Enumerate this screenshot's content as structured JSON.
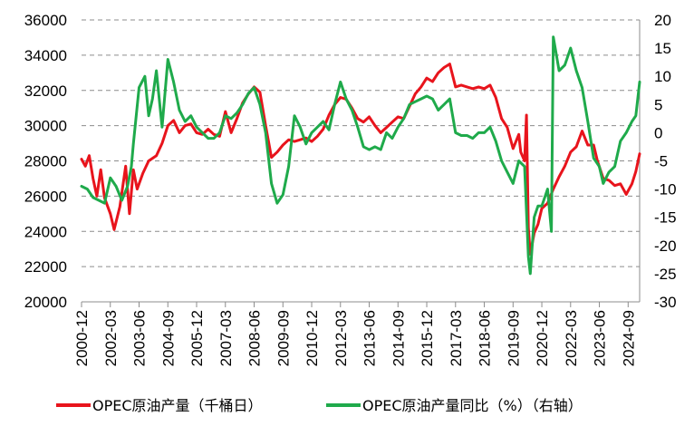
{
  "chart_data": {
    "type": "line",
    "title": "",
    "left_axis": {
      "ylim": [
        20000,
        36000
      ],
      "ticks": [
        20000,
        22000,
        24000,
        26000,
        28000,
        30000,
        32000,
        34000,
        36000
      ]
    },
    "right_axis": {
      "ylim": [
        -30,
        20
      ],
      "ticks": [
        -30,
        -25,
        -20,
        -15,
        -10,
        -5,
        0,
        5,
        10,
        15,
        20
      ]
    },
    "x_tick_labels": [
      "2000-12",
      "2002-03",
      "2003-06",
      "2004-09",
      "2005-12",
      "2007-03",
      "2008-06",
      "2009-09",
      "2010-12",
      "2012-03",
      "2013-06",
      "2014-09",
      "2015-12",
      "2017-03",
      "2018-06",
      "2019-09",
      "2020-12",
      "2022-03",
      "2023-06",
      "2024-09"
    ],
    "x_start": "2000-12",
    "x_end": "2025-03",
    "grid": true,
    "legend_position": "bottom",
    "series": [
      {
        "name": "OPEC原油产量（千桶日）",
        "axis": "left",
        "color": "#e8141c",
        "points": [
          [
            "2000-12",
            28100
          ],
          [
            "2001-02",
            27700
          ],
          [
            "2001-04",
            28300
          ],
          [
            "2001-06",
            27000
          ],
          [
            "2001-08",
            26000
          ],
          [
            "2001-10",
            27500
          ],
          [
            "2001-12",
            25900
          ],
          [
            "2002-03",
            25000
          ],
          [
            "2002-05",
            24100
          ],
          [
            "2002-08",
            25400
          ],
          [
            "2002-11",
            27700
          ],
          [
            "2003-01",
            25000
          ],
          [
            "2003-03",
            27500
          ],
          [
            "2003-05",
            26400
          ],
          [
            "2003-08",
            27300
          ],
          [
            "2003-11",
            28000
          ],
          [
            "2004-03",
            28300
          ],
          [
            "2004-06",
            29000
          ],
          [
            "2004-09",
            30000
          ],
          [
            "2004-12",
            30300
          ],
          [
            "2005-03",
            29600
          ],
          [
            "2005-06",
            30000
          ],
          [
            "2005-09",
            30100
          ],
          [
            "2005-12",
            29600
          ],
          [
            "2006-03",
            29500
          ],
          [
            "2006-06",
            29800
          ],
          [
            "2006-09",
            29500
          ],
          [
            "2006-12",
            29400
          ],
          [
            "2007-03",
            30800
          ],
          [
            "2007-06",
            29600
          ],
          [
            "2007-09",
            30400
          ],
          [
            "2007-12",
            31300
          ],
          [
            "2008-03",
            31800
          ],
          [
            "2008-06",
            32200
          ],
          [
            "2008-09",
            31900
          ],
          [
            "2008-12",
            30000
          ],
          [
            "2009-03",
            28200
          ],
          [
            "2009-06",
            28500
          ],
          [
            "2009-09",
            28900
          ],
          [
            "2009-12",
            29200
          ],
          [
            "2010-03",
            29100
          ],
          [
            "2010-06",
            29200
          ],
          [
            "2010-09",
            29300
          ],
          [
            "2010-12",
            29100
          ],
          [
            "2011-03",
            29400
          ],
          [
            "2011-06",
            29800
          ],
          [
            "2011-09",
            30600
          ],
          [
            "2011-12",
            31200
          ],
          [
            "2012-03",
            31600
          ],
          [
            "2012-06",
            31500
          ],
          [
            "2012-09",
            31000
          ],
          [
            "2012-12",
            30400
          ],
          [
            "2013-03",
            30200
          ],
          [
            "2013-06",
            30500
          ],
          [
            "2013-09",
            30000
          ],
          [
            "2013-12",
            29600
          ],
          [
            "2014-03",
            29900
          ],
          [
            "2014-06",
            30200
          ],
          [
            "2014-09",
            30500
          ],
          [
            "2014-12",
            30400
          ],
          [
            "2015-03",
            31100
          ],
          [
            "2015-06",
            31800
          ],
          [
            "2015-09",
            32200
          ],
          [
            "2015-12",
            32700
          ],
          [
            "2016-03",
            32500
          ],
          [
            "2016-06",
            33000
          ],
          [
            "2016-09",
            33300
          ],
          [
            "2016-12",
            33500
          ],
          [
            "2017-03",
            32200
          ],
          [
            "2017-06",
            32300
          ],
          [
            "2017-09",
            32200
          ],
          [
            "2017-12",
            32100
          ],
          [
            "2018-03",
            32200
          ],
          [
            "2018-06",
            32100
          ],
          [
            "2018-09",
            32300
          ],
          [
            "2018-12",
            31600
          ],
          [
            "2019-03",
            30400
          ],
          [
            "2019-06",
            29900
          ],
          [
            "2019-09",
            28700
          ],
          [
            "2019-12",
            29500
          ],
          [
            "2020-01",
            28500
          ],
          [
            "2020-03",
            28000
          ],
          [
            "2020-04",
            30600
          ],
          [
            "2020-05",
            24200
          ],
          [
            "2020-06",
            22700
          ],
          [
            "2020-08",
            23900
          ],
          [
            "2020-10",
            24400
          ],
          [
            "2020-12",
            25300
          ],
          [
            "2021-03",
            25600
          ],
          [
            "2021-06",
            26400
          ],
          [
            "2021-09",
            27100
          ],
          [
            "2021-12",
            27700
          ],
          [
            "2022-03",
            28500
          ],
          [
            "2022-06",
            28800
          ],
          [
            "2022-09",
            29700
          ],
          [
            "2022-12",
            28900
          ],
          [
            "2023-03",
            28900
          ],
          [
            "2023-05",
            28000
          ],
          [
            "2023-08",
            27000
          ],
          [
            "2023-11",
            26900
          ],
          [
            "2024-02",
            26600
          ],
          [
            "2024-05",
            26700
          ],
          [
            "2024-08",
            26100
          ],
          [
            "2024-11",
            26700
          ],
          [
            "2025-01",
            27400
          ],
          [
            "2025-03",
            28400
          ]
        ]
      },
      {
        "name": "OPEC原油产量同比（%）（右轴）",
        "axis": "right",
        "color": "#1faa4b",
        "points": [
          [
            "2000-12",
            -9.5
          ],
          [
            "2001-03",
            -10
          ],
          [
            "2001-06",
            -11.5
          ],
          [
            "2001-09",
            -12
          ],
          [
            "2001-12",
            -12.5
          ],
          [
            "2002-03",
            -8
          ],
          [
            "2002-06",
            -9.5
          ],
          [
            "2002-09",
            -12
          ],
          [
            "2002-12",
            -9.5
          ],
          [
            "2003-02",
            -6
          ],
          [
            "2003-03",
            -2
          ],
          [
            "2003-06",
            8
          ],
          [
            "2003-09",
            10
          ],
          [
            "2003-11",
            3
          ],
          [
            "2004-01",
            6
          ],
          [
            "2004-03",
            11
          ],
          [
            "2004-06",
            1
          ],
          [
            "2004-09",
            13
          ],
          [
            "2004-12",
            9
          ],
          [
            "2005-03",
            4
          ],
          [
            "2005-06",
            2
          ],
          [
            "2005-09",
            3
          ],
          [
            "2005-12",
            1
          ],
          [
            "2006-03",
            0
          ],
          [
            "2006-06",
            -1
          ],
          [
            "2006-09",
            -1
          ],
          [
            "2006-12",
            0
          ],
          [
            "2007-03",
            3
          ],
          [
            "2007-06",
            2.5
          ],
          [
            "2007-09",
            3.5
          ],
          [
            "2007-12",
            5
          ],
          [
            "2008-03",
            7
          ],
          [
            "2008-06",
            8
          ],
          [
            "2008-09",
            5
          ],
          [
            "2008-12",
            0
          ],
          [
            "2009-03",
            -9
          ],
          [
            "2009-06",
            -12.5
          ],
          [
            "2009-09",
            -11
          ],
          [
            "2009-12",
            -6
          ],
          [
            "2010-03",
            3
          ],
          [
            "2010-06",
            1
          ],
          [
            "2010-09",
            -2
          ],
          [
            "2010-12",
            0
          ],
          [
            "2011-03",
            1
          ],
          [
            "2011-06",
            2
          ],
          [
            "2011-09",
            0.5
          ],
          [
            "2011-12",
            5
          ],
          [
            "2012-03",
            9
          ],
          [
            "2012-06",
            6
          ],
          [
            "2012-09",
            4
          ],
          [
            "2012-12",
            1
          ],
          [
            "2013-03",
            -2.5
          ],
          [
            "2013-06",
            -3
          ],
          [
            "2013-09",
            -2.5
          ],
          [
            "2013-12",
            -3
          ],
          [
            "2014-03",
            0
          ],
          [
            "2014-06",
            -1
          ],
          [
            "2014-09",
            1
          ],
          [
            "2014-12",
            2.5
          ],
          [
            "2015-03",
            5
          ],
          [
            "2015-06",
            5.5
          ],
          [
            "2015-09",
            6
          ],
          [
            "2015-12",
            6.5
          ],
          [
            "2016-03",
            6
          ],
          [
            "2016-06",
            4
          ],
          [
            "2016-09",
            5
          ],
          [
            "2016-12",
            6
          ],
          [
            "2017-03",
            0
          ],
          [
            "2017-06",
            -0.5
          ],
          [
            "2017-09",
            -0.5
          ],
          [
            "2017-12",
            -1
          ],
          [
            "2018-03",
            0
          ],
          [
            "2018-06",
            0
          ],
          [
            "2018-09",
            1
          ],
          [
            "2018-12",
            -1.5
          ],
          [
            "2019-03",
            -5
          ],
          [
            "2019-06",
            -7
          ],
          [
            "2019-09",
            -9
          ],
          [
            "2019-12",
            -5
          ],
          [
            "2020-03",
            -6
          ],
          [
            "2020-05",
            -22
          ],
          [
            "2020-06",
            -25
          ],
          [
            "2020-08",
            -15
          ],
          [
            "2020-10",
            -13
          ],
          [
            "2020-12",
            -13
          ],
          [
            "2021-03",
            -10
          ],
          [
            "2021-05",
            -17.5
          ],
          [
            "2021-06",
            17
          ],
          [
            "2021-09",
            11
          ],
          [
            "2021-12",
            12
          ],
          [
            "2022-03",
            15
          ],
          [
            "2022-06",
            11
          ],
          [
            "2022-09",
            8
          ],
          [
            "2022-12",
            2
          ],
          [
            "2023-03",
            -4.5
          ],
          [
            "2023-06",
            -6
          ],
          [
            "2023-08",
            -9
          ],
          [
            "2023-11",
            -7
          ],
          [
            "2024-02",
            -6
          ],
          [
            "2024-05",
            -1.5
          ],
          [
            "2024-08",
            0
          ],
          [
            "2024-11",
            2
          ],
          [
            "2025-01",
            3
          ],
          [
            "2025-03",
            9
          ]
        ]
      }
    ]
  },
  "legend": {
    "item1": "OPEC原油产量（千桶日）",
    "item2": "OPEC原油产量同比（%）（右轴）"
  }
}
